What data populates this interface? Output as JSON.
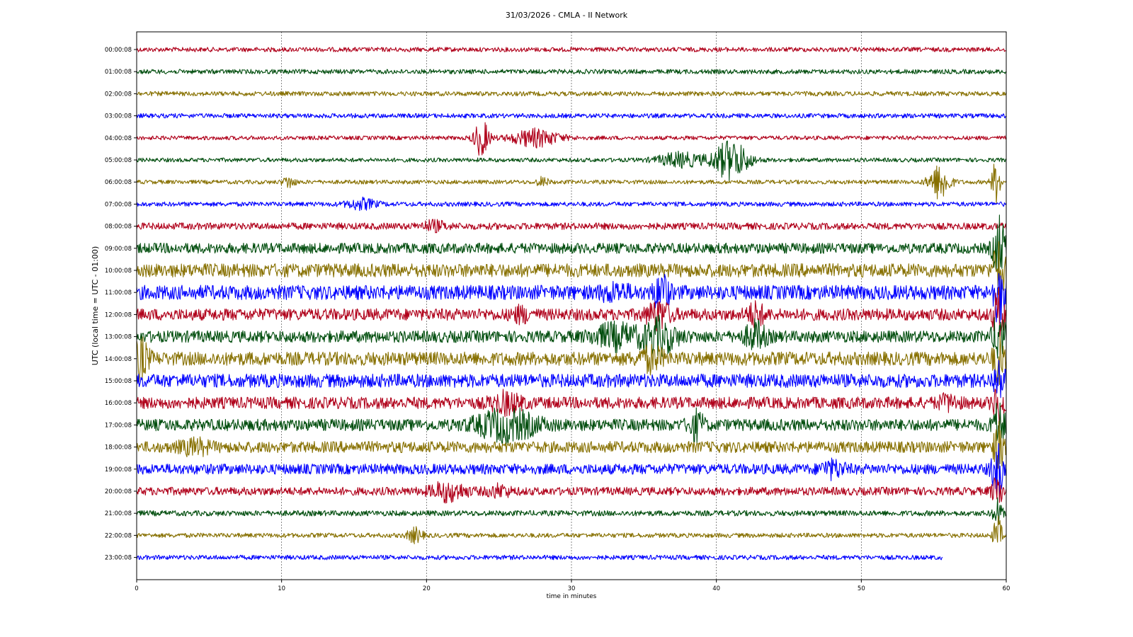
{
  "chart_data": {
    "type": "line",
    "title": "31/03/2026 - CMLA - II Network",
    "xlabel": "time in minutes",
    "ylabel": "UTC (local time = UTC - 01:00)",
    "xlim": [
      0,
      60
    ],
    "x_ticks": [
      "0",
      "10",
      "20",
      "30",
      "40",
      "50",
      "60"
    ],
    "grid": "vertical dotted",
    "series_colors": [
      "#b0001a",
      "#004d0d",
      "#877000",
      "#0000ff"
    ],
    "rows": [
      {
        "label": "00:00:08",
        "noise": 1.0
      },
      {
        "label": "01:00:08",
        "noise": 1.0
      },
      {
        "label": "02:00:08",
        "noise": 1.0
      },
      {
        "label": "03:00:08",
        "noise": 1.0
      },
      {
        "label": "04:00:08",
        "noise": 0.9,
        "events": [
          {
            "t": 23.8,
            "a": 25,
            "w": 0.5
          },
          {
            "t": 27.5,
            "a": 12,
            "w": 1.6
          }
        ]
      },
      {
        "label": "05:00:08",
        "noise": 0.9,
        "events": [
          {
            "t": 37.5,
            "a": 10,
            "w": 1.5
          },
          {
            "t": 41.0,
            "a": 28,
            "w": 1.2
          }
        ]
      },
      {
        "label": "06:00:08",
        "noise": 0.9,
        "events": [
          {
            "t": 10.5,
            "a": 8,
            "w": 0.4
          },
          {
            "t": 28.0,
            "a": 6,
            "w": 0.4
          },
          {
            "t": 55.4,
            "a": 25,
            "w": 0.7
          },
          {
            "t": 59.3,
            "a": 30,
            "w": 0.3
          }
        ]
      },
      {
        "label": "07:00:08",
        "noise": 1.0,
        "events": [
          {
            "t": 15.5,
            "a": 7,
            "w": 1.0
          }
        ]
      },
      {
        "label": "08:00:08",
        "noise": 1.5,
        "events": [
          {
            "t": 20.5,
            "a": 6,
            "w": 0.8
          }
        ]
      },
      {
        "label": "09:00:08",
        "noise": 2.3,
        "events": [
          {
            "t": 59.5,
            "a": 45,
            "w": 0.4
          }
        ]
      },
      {
        "label": "10:00:08",
        "noise": 3.0,
        "events": [
          {
            "t": 59.5,
            "a": 40,
            "w": 0.4
          }
        ]
      },
      {
        "label": "11:00:08",
        "noise": 3.2,
        "events": [
          {
            "t": 33.0,
            "a": 8,
            "w": 1.0
          },
          {
            "t": 36.2,
            "a": 25,
            "w": 0.5
          },
          {
            "t": 59.5,
            "a": 40,
            "w": 0.4
          }
        ]
      },
      {
        "label": "12:00:08",
        "noise": 2.6,
        "events": [
          {
            "t": 26.5,
            "a": 8,
            "w": 0.6
          },
          {
            "t": 36.0,
            "a": 18,
            "w": 0.8
          },
          {
            "t": 42.7,
            "a": 14,
            "w": 0.6
          },
          {
            "t": 59.5,
            "a": 35,
            "w": 0.4
          }
        ]
      },
      {
        "label": "13:00:08",
        "noise": 2.6,
        "events": [
          {
            "t": 33.0,
            "a": 15,
            "w": 1.5
          },
          {
            "t": 36.0,
            "a": 22,
            "w": 1.2
          },
          {
            "t": 42.7,
            "a": 18,
            "w": 0.7
          },
          {
            "t": 59.5,
            "a": 35,
            "w": 0.4
          }
        ]
      },
      {
        "label": "14:00:08",
        "noise": 3.0,
        "events": [
          {
            "t": 0.3,
            "a": 25,
            "w": 0.5
          },
          {
            "t": 35.5,
            "a": 14,
            "w": 0.8
          },
          {
            "t": 59.5,
            "a": 30,
            "w": 0.4
          }
        ]
      },
      {
        "label": "15:00:08",
        "noise": 3.0,
        "events": [
          {
            "t": 59.5,
            "a": 25,
            "w": 0.4
          }
        ]
      },
      {
        "label": "16:00:08",
        "noise": 2.6,
        "events": [
          {
            "t": 25.5,
            "a": 12,
            "w": 1.0
          },
          {
            "t": 56.0,
            "a": 8,
            "w": 0.7
          },
          {
            "t": 59.5,
            "a": 25,
            "w": 0.4
          }
        ]
      },
      {
        "label": "17:00:08",
        "noise": 2.6,
        "events": [
          {
            "t": 25.5,
            "a": 20,
            "w": 2.0
          },
          {
            "t": 38.6,
            "a": 18,
            "w": 0.5
          },
          {
            "t": 59.5,
            "a": 30,
            "w": 0.4
          }
        ]
      },
      {
        "label": "18:00:08",
        "noise": 2.5,
        "events": [
          {
            "t": 4.0,
            "a": 8,
            "w": 1.0
          },
          {
            "t": 59.5,
            "a": 30,
            "w": 0.4
          }
        ]
      },
      {
        "label": "19:00:08",
        "noise": 2.3,
        "events": [
          {
            "t": 48.0,
            "a": 10,
            "w": 0.8
          },
          {
            "t": 59.4,
            "a": 35,
            "w": 0.4
          }
        ]
      },
      {
        "label": "20:00:08",
        "noise": 1.8,
        "events": [
          {
            "t": 21.5,
            "a": 12,
            "w": 1.2
          },
          {
            "t": 25.0,
            "a": 7,
            "w": 0.8
          },
          {
            "t": 59.4,
            "a": 20,
            "w": 0.4
          }
        ]
      },
      {
        "label": "21:00:08",
        "noise": 1.2,
        "events": [
          {
            "t": 59.4,
            "a": 20,
            "w": 0.3
          }
        ]
      },
      {
        "label": "22:00:08",
        "noise": 1.0,
        "events": [
          {
            "t": 19.2,
            "a": 10,
            "w": 0.5
          },
          {
            "t": 59.4,
            "a": 25,
            "w": 0.3
          }
        ]
      },
      {
        "label": "23:00:08",
        "noise": 1.0,
        "end_minutes": 55.6
      }
    ]
  }
}
